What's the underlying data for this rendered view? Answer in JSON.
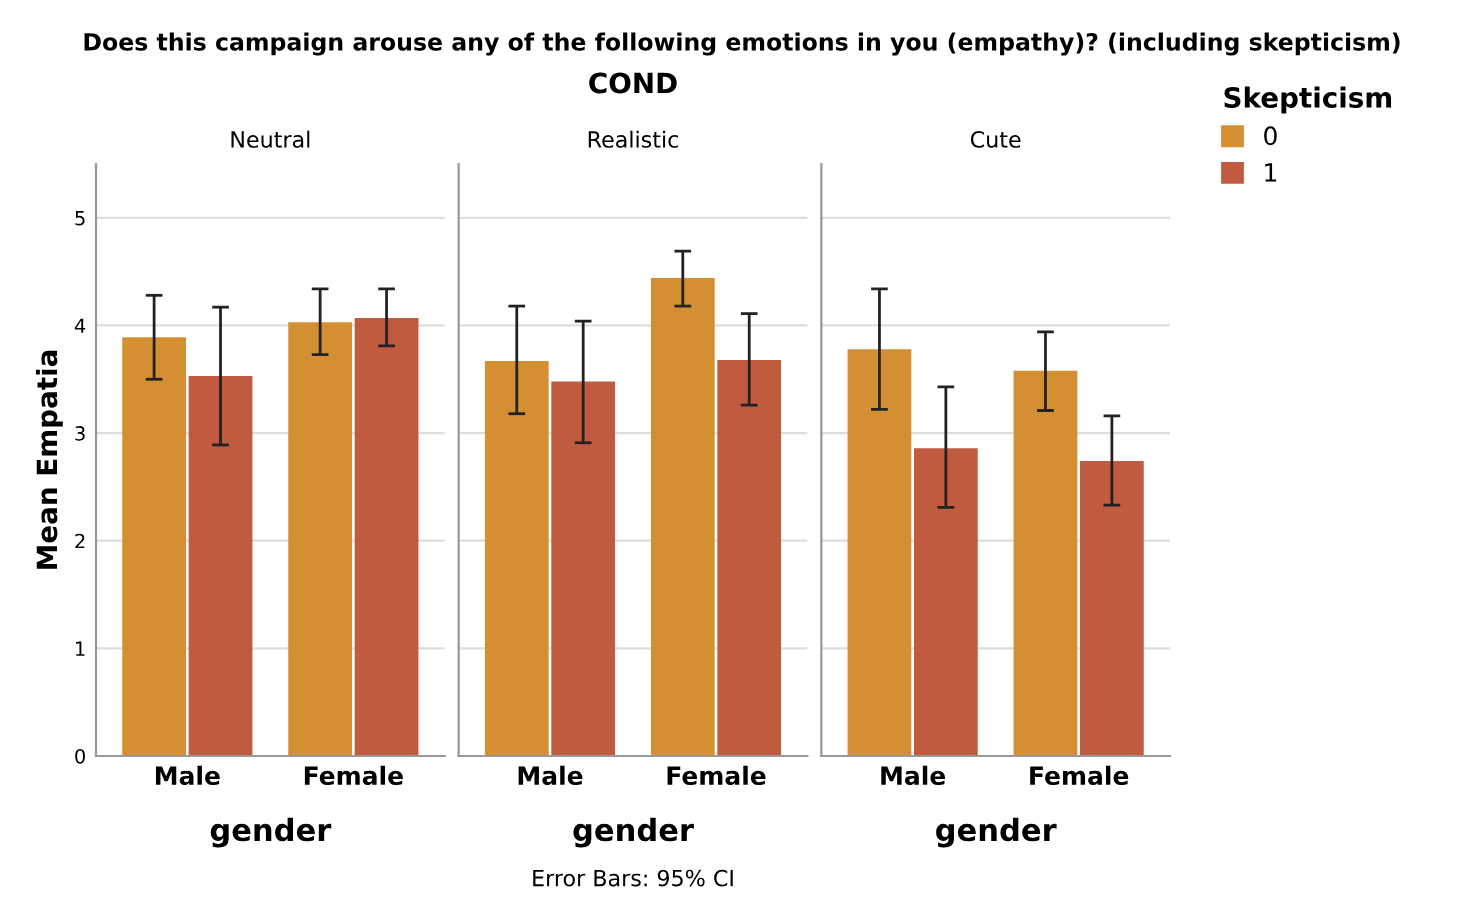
{
  "chart_data": [
    {
      "type": "bar",
      "title": "Does this campaign arouse any of the following emotions in you (empathy)? (including skepticism)",
      "subtitle": "Neutral",
      "xlabel": "gender",
      "ylabel": "Mean Empatia",
      "legend_title": "Skepticism",
      "legend": "top right",
      "categories": [
        "Male",
        "Female"
      ],
      "series": [
        {
          "name": "0",
          "color": "#d58f33",
          "values": [
            3.89,
            4.03
          ],
          "errors": [
            [
              3.5,
              4.28
            ],
            [
              3.73,
              4.34
            ]
          ]
        },
        {
          "name": "1",
          "color": "#c15b3f",
          "values": [
            3.53,
            4.07
          ],
          "errors": [
            [
              2.89,
              4.17
            ],
            [
              3.81,
              4.34
            ]
          ]
        }
      ],
      "ylim": [
        0,
        5.5
      ],
      "yticks": [
        0,
        1,
        2,
        3,
        4,
        5
      ],
      "grid": "y",
      "annotations": [
        "Error Bars: 95% CI"
      ]
    },
    {
      "type": "bar",
      "title": "COND",
      "subtitle": "Realistic",
      "xlabel": "gender",
      "categories": [
        "Male",
        "Female"
      ],
      "series": [
        {
          "color": "#d58f33",
          "values": [
            3.67,
            4.44
          ],
          "errors": [
            [
              3.18,
              4.18
            ],
            [
              4.18,
              4.69
            ]
          ]
        },
        {
          "color": "#c15b3f",
          "values": [
            3.48,
            3.68
          ],
          "errors": [
            [
              2.91,
              4.04
            ],
            [
              3.26,
              4.11
            ]
          ]
        }
      ],
      "ylim": [
        0,
        5.5
      ],
      "yticks": [
        0,
        1,
        2,
        3,
        4,
        5
      ],
      "grid": "y",
      "tick_labels": "x"
    },
    {
      "type": "bar",
      "subtitle": "Cute",
      "xlabel": "gender",
      "categories": [
        "Male",
        "Female"
      ],
      "series": [
        {
          "color": "#d58f33",
          "values": [
            3.78,
            3.58
          ],
          "errors": [
            [
              3.22,
              4.34
            ],
            [
              3.21,
              3.94
            ]
          ]
        },
        {
          "color": "#c15b3f",
          "values": [
            2.86,
            2.74
          ],
          "errors": [
            [
              2.31,
              3.43
            ],
            [
              2.33,
              3.16
            ]
          ]
        }
      ],
      "ylim": [
        0,
        5.5
      ],
      "yticks": [
        0,
        1,
        2,
        3,
        4,
        5
      ],
      "grid": "y",
      "tick_labels": "x"
    }
  ]
}
